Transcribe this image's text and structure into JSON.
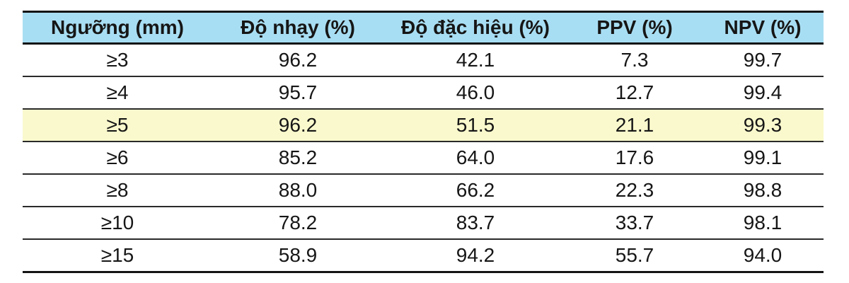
{
  "colors": {
    "header_bg": "#A8DEF3",
    "highlight_bg": "#FAF9CD",
    "border_strong": "#141414",
    "border_thin": "#2a2a2a",
    "text": "#161616",
    "page_bg": "#ffffff"
  },
  "table": {
    "columns": [
      "Ngưỡng (mm)",
      "Độ nhạy (%)",
      "Độ đặc hiệu (%)",
      "PPV (%)",
      "NPV (%)"
    ],
    "rows": [
      {
        "cells": [
          "≥3",
          "96.2",
          "42.1",
          "7.3",
          "99.7"
        ],
        "highlighted": false
      },
      {
        "cells": [
          "≥4",
          "95.7",
          "46.0",
          "12.7",
          "99.4"
        ],
        "highlighted": false
      },
      {
        "cells": [
          "≥5",
          "96.2",
          "51.5",
          "21.1",
          "99.3"
        ],
        "highlighted": true
      },
      {
        "cells": [
          "≥6",
          "85.2",
          "64.0",
          "17.6",
          "99.1"
        ],
        "highlighted": false
      },
      {
        "cells": [
          "≥8",
          "88.0",
          "66.2",
          "22.3",
          "98.8"
        ],
        "highlighted": false
      },
      {
        "cells": [
          "≥10",
          "78.2",
          "83.7",
          "33.7",
          "98.1"
        ],
        "highlighted": false
      },
      {
        "cells": [
          "≥15",
          "58.9",
          "94.2",
          "55.7",
          "94.0"
        ],
        "highlighted": false
      }
    ]
  },
  "chart_data": {
    "type": "table",
    "title": "",
    "columns": [
      "Ngưỡng (mm)",
      "Độ nhạy (%)",
      "Độ đặc hiệu (%)",
      "PPV (%)",
      "NPV (%)"
    ],
    "rows": [
      [
        "≥3",
        96.2,
        42.1,
        7.3,
        99.7
      ],
      [
        "≥4",
        95.7,
        46.0,
        12.7,
        99.4
      ],
      [
        "≥5",
        96.2,
        51.5,
        21.1,
        99.3
      ],
      [
        "≥6",
        85.2,
        64.0,
        17.6,
        99.1
      ],
      [
        "≥8",
        88.0,
        66.2,
        22.3,
        98.8
      ],
      [
        "≥10",
        78.2,
        83.7,
        33.7,
        98.1
      ],
      [
        "≥15",
        58.9,
        94.2,
        55.7,
        94.0
      ]
    ],
    "highlighted_row": "≥5",
    "layout_hints": {
      "header_fill": "#A8DEF3",
      "highlight_fill": "#FAF9CD",
      "horizontal_rules_only": true,
      "cell_alignment": "center"
    }
  }
}
